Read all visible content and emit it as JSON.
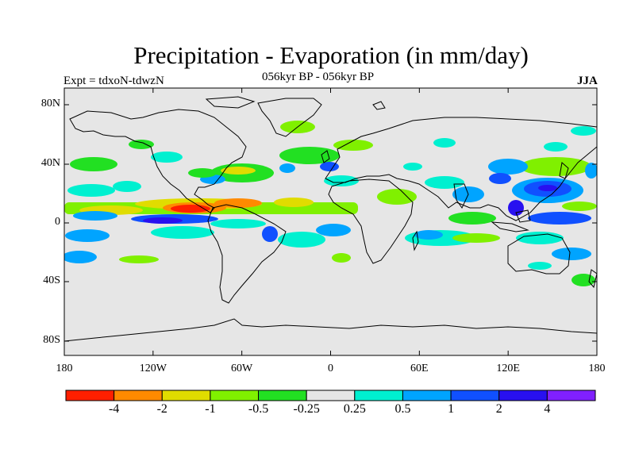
{
  "title": "Precipitation - Evaporation (in mm/day)",
  "subtitle_left": "Expt = tdxoN-tdwzN",
  "subtitle_center": "056kyr BP - 056kyr BP",
  "subtitle_right": "JJA",
  "axes": {
    "lat_ticks": [
      "80N",
      "40N",
      "0",
      "40S",
      "80S"
    ],
    "lon_ticks": [
      "180",
      "120W",
      "60W",
      "0",
      "60E",
      "120E",
      "180"
    ]
  },
  "colorbar": {
    "labels": [
      "-4",
      "-2",
      "-1",
      "-0.5",
      "-0.25",
      "0.25",
      "0.5",
      "1",
      "2",
      "4"
    ],
    "colors": [
      "#ff1f00",
      "#ff8a00",
      "#e0dc00",
      "#80f000",
      "#22e022",
      "#e6e6e6",
      "#00f0d0",
      "#00a4ff",
      "#1050ff",
      "#2810f0",
      "#8020ff"
    ]
  },
  "map": {
    "background": "#e6e6e6",
    "projection": "cylindrical-equidistant"
  }
}
